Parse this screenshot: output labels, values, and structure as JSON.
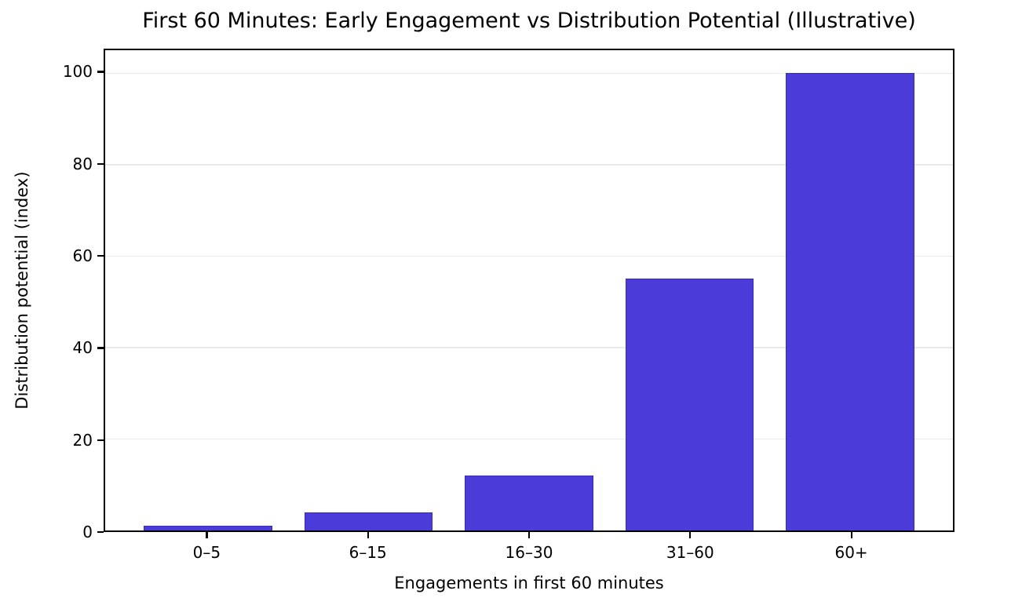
{
  "chart_data": {
    "type": "bar",
    "title": "First 60 Minutes: Early Engagement vs Distribution Potential (Illustrative)",
    "xlabel": "Engagements in first 60 minutes",
    "ylabel": "Distribution potential (index)",
    "categories": [
      "0–5",
      "6–15",
      "16–30",
      "31–60",
      "60+"
    ],
    "values": [
      1,
      4,
      12,
      55,
      100
    ],
    "yticks": [
      0,
      20,
      40,
      60,
      80,
      100
    ],
    "ylim": [
      0,
      105
    ],
    "xlim": [
      -0.64,
      4.64
    ],
    "bar_width": 0.8,
    "grid": true,
    "legend_position": "none",
    "colors": {
      "bar_fill": "#4b3bd9",
      "bar_edge": "#382cb4",
      "gridline": "#e9e9e9",
      "axis": "#000000",
      "background": "#ffffff",
      "text": "#000000"
    }
  }
}
